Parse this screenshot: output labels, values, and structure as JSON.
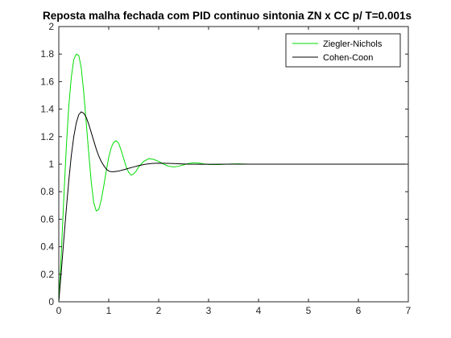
{
  "chart_data": {
    "type": "line",
    "title": "Reposta malha fechada com PID continuo sintonia ZN x CC p/ T=0.001s",
    "xlabel": "",
    "ylabel": "",
    "xlim": [
      0,
      7
    ],
    "ylim": [
      0,
      2
    ],
    "x_ticks": [
      "0",
      "1",
      "2",
      "3",
      "4",
      "5",
      "6",
      "7"
    ],
    "y_ticks": [
      "0",
      "0.2",
      "0.4",
      "0.6",
      "0.8",
      "1",
      "1.2",
      "1.4",
      "1.6",
      "1.8",
      "2"
    ],
    "grid": false,
    "legend_position": "top-right",
    "series": [
      {
        "name": "Ziegler-Nichols",
        "color": "#00dd00",
        "x": [
          0,
          0.05,
          0.1,
          0.15,
          0.2,
          0.25,
          0.3,
          0.35,
          0.4,
          0.45,
          0.5,
          0.55,
          0.6,
          0.65,
          0.7,
          0.75,
          0.8,
          0.85,
          0.9,
          0.95,
          1.0,
          1.05,
          1.1,
          1.15,
          1.2,
          1.25,
          1.3,
          1.35,
          1.4,
          1.45,
          1.5,
          1.55,
          1.6,
          1.7,
          1.8,
          1.9,
          2.0,
          2.1,
          2.2,
          2.3,
          2.4,
          2.5,
          2.6,
          2.7,
          2.8,
          2.9,
          3.0,
          3.2,
          3.4,
          3.6,
          3.8,
          4.0,
          5.0,
          6.0,
          7.0
        ],
        "y": [
          0,
          0.35,
          0.75,
          1.12,
          1.42,
          1.63,
          1.76,
          1.8,
          1.79,
          1.7,
          1.52,
          1.3,
          1.08,
          0.87,
          0.72,
          0.66,
          0.67,
          0.74,
          0.84,
          0.95,
          1.05,
          1.12,
          1.16,
          1.17,
          1.15,
          1.1,
          1.04,
          0.98,
          0.94,
          0.92,
          0.93,
          0.95,
          0.98,
          1.02,
          1.04,
          1.035,
          1.02,
          1.0,
          0.985,
          0.98,
          0.985,
          0.995,
          1.005,
          1.01,
          1.008,
          1.002,
          0.998,
          0.997,
          1.001,
          1.002,
          1.0,
          1.0,
          1.0,
          1.0,
          1.0
        ]
      },
      {
        "name": "Cohen-Coon",
        "color": "#000000",
        "x": [
          0,
          0.05,
          0.1,
          0.15,
          0.2,
          0.25,
          0.3,
          0.35,
          0.4,
          0.45,
          0.5,
          0.55,
          0.6,
          0.65,
          0.7,
          0.75,
          0.8,
          0.85,
          0.9,
          0.95,
          1.0,
          1.05,
          1.1,
          1.2,
          1.3,
          1.4,
          1.5,
          1.6,
          1.7,
          1.8,
          1.9,
          2.0,
          2.2,
          2.4,
          2.6,
          2.8,
          3.0,
          3.5,
          4.0,
          5.0,
          6.0,
          7.0
        ],
        "y": [
          0,
          0.22,
          0.45,
          0.67,
          0.88,
          1.06,
          1.2,
          1.3,
          1.36,
          1.38,
          1.37,
          1.34,
          1.29,
          1.23,
          1.17,
          1.11,
          1.06,
          1.02,
          0.99,
          0.965,
          0.95,
          0.945,
          0.945,
          0.95,
          0.96,
          0.97,
          0.98,
          0.99,
          0.997,
          1.003,
          1.006,
          1.007,
          1.006,
          1.003,
          1.0,
          0.999,
          0.999,
          1.0,
          1.0,
          1.0,
          1.0,
          1.0
        ]
      }
    ]
  }
}
